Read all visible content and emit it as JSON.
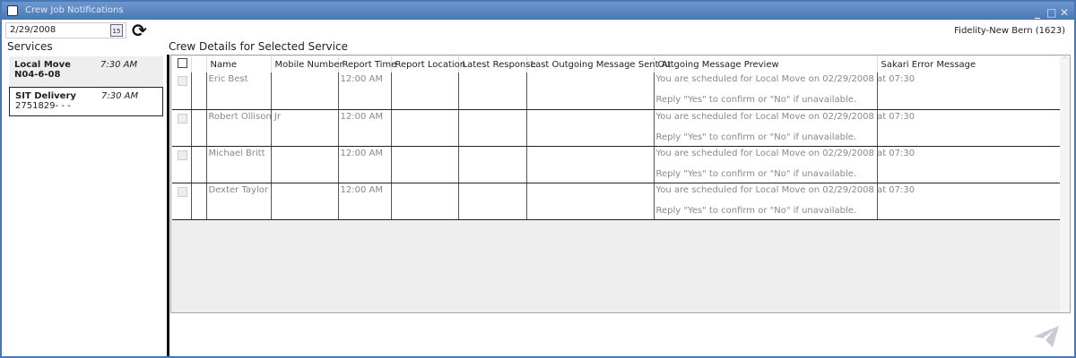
{
  "window": {
    "title": "Crew Job Notifications"
  },
  "toolbar": {
    "date": "2/29/2008",
    "calendar_day": "15",
    "company": "Fidelity-New Bern (1623)"
  },
  "services": {
    "heading": "Services",
    "items": [
      {
        "name": "Local Move",
        "time": "7:30 AM",
        "detail": "N04-6-08",
        "selected": true
      },
      {
        "name": "SIT Delivery",
        "time": "7:30 AM",
        "detail": "2751829- - -",
        "selected": false
      }
    ]
  },
  "crew": {
    "heading": "Crew Details for Selected Service",
    "columns": [
      "Name",
      "Mobile Number",
      "Report Time",
      "Report Location",
      "Latest Response",
      "Last Outgoing Message Sent At",
      "Outgoing Message Preview",
      "Sakari Error Message"
    ],
    "rows": [
      {
        "name": "Eric Best",
        "mobile": "",
        "report_time": "12:00 AM",
        "location": "",
        "response": "",
        "last_sent": "",
        "preview1": "You are scheduled for Local Move on 02/29/2008 at 07:30",
        "preview2": "Reply \"Yes\" to confirm or \"No\" if unavailable.",
        "error": ""
      },
      {
        "name": "Robert Ollison Jr",
        "mobile": "",
        "report_time": "12:00 AM",
        "location": "",
        "response": "",
        "last_sent": "",
        "preview1": "You are scheduled for Local Move on 02/29/2008 at 07:30",
        "preview2": "Reply \"Yes\" to confirm or \"No\" if unavailable.",
        "error": ""
      },
      {
        "name": "Michael Britt",
        "mobile": "",
        "report_time": "12:00 AM",
        "location": "",
        "response": "",
        "last_sent": "",
        "preview1": "You are scheduled for Local Move on 02/29/2008 at 07:30",
        "preview2": "Reply \"Yes\" to confirm or \"No\" if unavailable.",
        "error": ""
      },
      {
        "name": "Dexter Taylor",
        "mobile": "",
        "report_time": "12:00 AM",
        "location": "",
        "response": "",
        "last_sent": "",
        "preview1": "You are scheduled for Local Move on 02/29/2008 at 07:30",
        "preview2": "Reply \"Yes\" to confirm or \"No\" if unavailable.",
        "error": ""
      }
    ]
  },
  "icons": {
    "refresh": "refresh-icon",
    "calendar": "calendar-icon",
    "send": "paper-plane-icon"
  }
}
